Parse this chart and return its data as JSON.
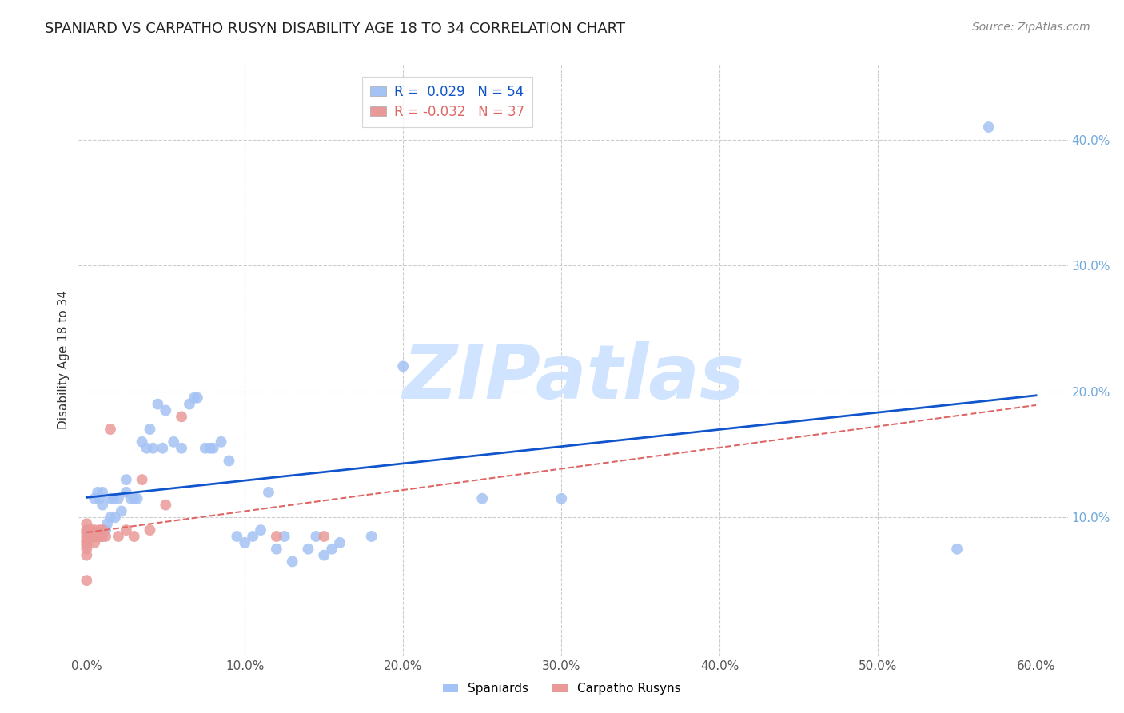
{
  "title": "SPANIARD VS CARPATHO RUSYN DISABILITY AGE 18 TO 34 CORRELATION CHART",
  "source": "Source: ZipAtlas.com",
  "ylabel": "Disability Age 18 to 34",
  "xlim": [
    -0.005,
    0.62
  ],
  "ylim": [
    -0.01,
    0.46
  ],
  "xticks": [
    0.0,
    0.1,
    0.2,
    0.3,
    0.4,
    0.5,
    0.6
  ],
  "yticks": [
    0.1,
    0.2,
    0.3,
    0.4
  ],
  "ytick_labels_right": [
    "10.0%",
    "20.0%",
    "30.0%",
    "40.0%"
  ],
  "xtick_labels": [
    "0.0%",
    "10.0%",
    "20.0%",
    "30.0%",
    "40.0%",
    "50.0%",
    "60.0%"
  ],
  "background_color": "#ffffff",
  "grid_color": "#cccccc",
  "blue_color": "#a4c2f4",
  "pink_color": "#ea9999",
  "blue_line_color": "#1155cc",
  "pink_line_color": "#e06666",
  "watermark": "ZIPatlas",
  "watermark_color": "#d0e4ff",
  "legend_r1": "R =  0.029   N = 54",
  "legend_r2": "R = -0.032   N = 37",
  "legend_label1": "Spaniards",
  "legend_label2": "Carpatho Rusyns",
  "spaniard_x": [
    0.005,
    0.007,
    0.008,
    0.01,
    0.01,
    0.012,
    0.013,
    0.015,
    0.015,
    0.017,
    0.018,
    0.02,
    0.022,
    0.025,
    0.025,
    0.028,
    0.03,
    0.032,
    0.035,
    0.038,
    0.04,
    0.042,
    0.045,
    0.048,
    0.05,
    0.055,
    0.06,
    0.065,
    0.068,
    0.07,
    0.075,
    0.078,
    0.08,
    0.085,
    0.09,
    0.095,
    0.1,
    0.105,
    0.11,
    0.115,
    0.12,
    0.125,
    0.13,
    0.14,
    0.145,
    0.15,
    0.155,
    0.16,
    0.18,
    0.2,
    0.25,
    0.3,
    0.55,
    0.57
  ],
  "spaniard_y": [
    0.115,
    0.12,
    0.115,
    0.11,
    0.12,
    0.09,
    0.095,
    0.1,
    0.115,
    0.115,
    0.1,
    0.115,
    0.105,
    0.13,
    0.12,
    0.115,
    0.115,
    0.115,
    0.16,
    0.155,
    0.17,
    0.155,
    0.19,
    0.155,
    0.185,
    0.16,
    0.155,
    0.19,
    0.195,
    0.195,
    0.155,
    0.155,
    0.155,
    0.16,
    0.145,
    0.085,
    0.08,
    0.085,
    0.09,
    0.12,
    0.075,
    0.085,
    0.065,
    0.075,
    0.085,
    0.07,
    0.075,
    0.08,
    0.085,
    0.22,
    0.115,
    0.115,
    0.075,
    0.41
  ],
  "rusyn_x": [
    0.0,
    0.0,
    0.0,
    0.0,
    0.0,
    0.0,
    0.0,
    0.0,
    0.0,
    0.0,
    0.002,
    0.002,
    0.003,
    0.003,
    0.004,
    0.005,
    0.005,
    0.005,
    0.005,
    0.006,
    0.007,
    0.008,
    0.008,
    0.009,
    0.01,
    0.01,
    0.012,
    0.015,
    0.02,
    0.025,
    0.03,
    0.035,
    0.04,
    0.05,
    0.06,
    0.12,
    0.15
  ],
  "rusyn_y": [
    0.095,
    0.09,
    0.088,
    0.085,
    0.082,
    0.08,
    0.078,
    0.075,
    0.07,
    0.05,
    0.085,
    0.09,
    0.085,
    0.09,
    0.085,
    0.09,
    0.088,
    0.085,
    0.08,
    0.085,
    0.085,
    0.085,
    0.09,
    0.085,
    0.085,
    0.09,
    0.085,
    0.17,
    0.085,
    0.09,
    0.085,
    0.13,
    0.09,
    0.11,
    0.18,
    0.085,
    0.085
  ]
}
